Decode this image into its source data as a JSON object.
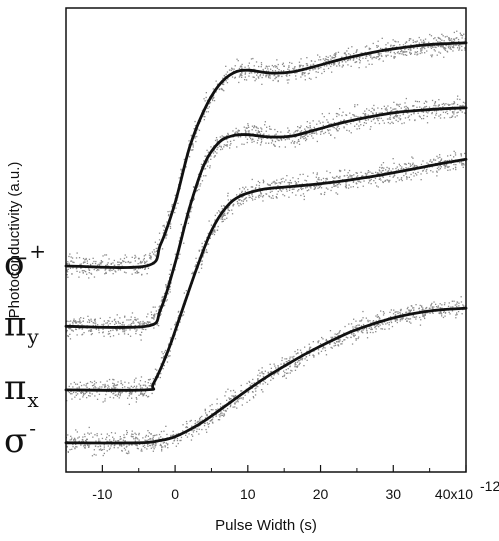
{
  "chart_data": {
    "type": "line",
    "xlabel": "Pulse Width (s)",
    "ylabel": "Photoconductivity (a.u.)",
    "x_ticks": [
      -10,
      0,
      10,
      20,
      30,
      40
    ],
    "x_tick_labels": [
      "-10",
      "0",
      "10",
      "20",
      "30",
      "40x10"
    ],
    "x_exponent": "-12",
    "xlim": [
      -15,
      40
    ],
    "ylim": [
      0,
      1
    ],
    "grid": false,
    "legend": "none",
    "colors": {
      "fit": "#111111",
      "scatter": "#8a8a8a"
    },
    "series": [
      {
        "label_base": "σ",
        "label_mark": "+",
        "mark_type": "sup",
        "x": [
          -15,
          -4,
          -2,
          0,
          2,
          4,
          6,
          8,
          10,
          13,
          16,
          19,
          22,
          25,
          28,
          31,
          34,
          37,
          40
        ],
        "y": [
          0.444,
          0.444,
          0.49,
          0.58,
          0.7,
          0.78,
          0.833,
          0.86,
          0.866,
          0.86,
          0.862,
          0.873,
          0.886,
          0.897,
          0.907,
          0.914,
          0.92,
          0.923,
          0.925
        ]
      },
      {
        "label_base": "π",
        "label_mark": "y",
        "mark_type": "sub",
        "x": [
          -15,
          -4,
          -2,
          0,
          2,
          4,
          6,
          8,
          10,
          13,
          16,
          19,
          22,
          25,
          28,
          31,
          34,
          37,
          40
        ],
        "y": [
          0.314,
          0.314,
          0.35,
          0.45,
          0.57,
          0.663,
          0.71,
          0.725,
          0.727,
          0.722,
          0.724,
          0.736,
          0.749,
          0.76,
          0.769,
          0.776,
          0.78,
          0.783,
          0.785
        ]
      },
      {
        "label_base": "π",
        "label_mark": "x",
        "mark_type": "sub",
        "x": [
          -15,
          -4,
          -3,
          -1,
          1,
          3,
          5,
          7,
          9,
          12,
          15,
          18,
          22,
          26,
          30,
          34,
          37,
          40
        ],
        "y": [
          0.177,
          0.177,
          0.19,
          0.26,
          0.35,
          0.44,
          0.52,
          0.57,
          0.595,
          0.609,
          0.614,
          0.618,
          0.625,
          0.634,
          0.645,
          0.657,
          0.666,
          0.674
        ]
      },
      {
        "label_base": "σ",
        "label_mark": "-",
        "mark_type": "sup",
        "x": [
          -15,
          -5,
          -2,
          0,
          3,
          6,
          9,
          12,
          15,
          18,
          21,
          24,
          27,
          30,
          33,
          36,
          40
        ],
        "y": [
          0.063,
          0.063,
          0.068,
          0.076,
          0.1,
          0.132,
          0.166,
          0.199,
          0.228,
          0.255,
          0.279,
          0.301,
          0.318,
          0.332,
          0.342,
          0.349,
          0.353
        ]
      }
    ]
  }
}
